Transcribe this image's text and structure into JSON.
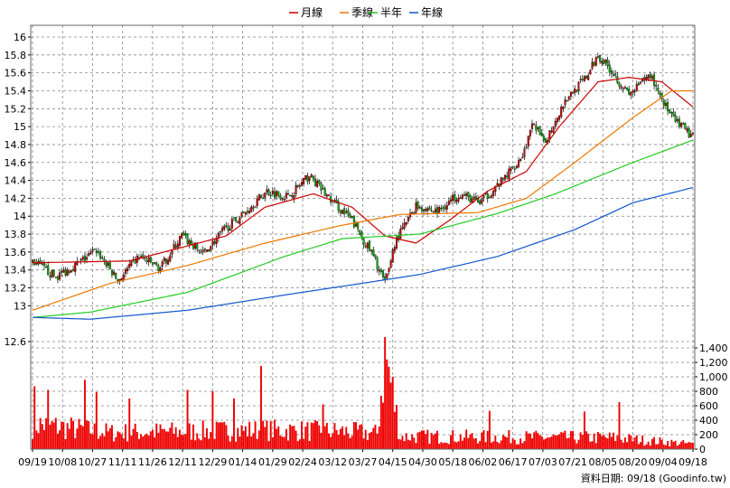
{
  "chart_data": {
    "type": "candlestick-with-volume",
    "legend": [
      {
        "label": "月線",
        "color": "#cc0000"
      },
      {
        "label": "季線",
        "color": "#ee7700"
      },
      {
        "label": "半年",
        "color": "#22cc22"
      },
      {
        "label": "年線",
        "color": "#1155cc"
      }
    ],
    "price_axis": {
      "ticks": [
        "16",
        "15.8",
        "15.6",
        "15.4",
        "15.2",
        "15",
        "14.8",
        "14.6",
        "14.4",
        "14.2",
        "14",
        "13.8",
        "13.6",
        "13.4",
        "13.2",
        "13",
        "12.6"
      ],
      "ylim": [
        12.6,
        16.1
      ]
    },
    "volume_axis": {
      "ticks": [
        "1,400",
        "1,200",
        "1,000",
        "800",
        "600",
        "400",
        "200",
        "0"
      ],
      "ylim": [
        0,
        1500
      ]
    },
    "x_ticks": [
      "09/19",
      "10/08",
      "10/27",
      "11/11",
      "11/26",
      "12/11",
      "12/29",
      "01/14",
      "01/29",
      "02/24",
      "03/12",
      "03/27",
      "04/15",
      "04/30",
      "05/18",
      "06/02",
      "06/17",
      "07/03",
      "07/21",
      "08/05",
      "08/20",
      "09/04",
      "09/18"
    ],
    "close_keypoints": [
      {
        "i": 0,
        "v": 13.5
      },
      {
        "i": 12,
        "v": 13.32
      },
      {
        "i": 22,
        "v": 13.45
      },
      {
        "i": 33,
        "v": 13.62
      },
      {
        "i": 44,
        "v": 13.28
      },
      {
        "i": 55,
        "v": 13.55
      },
      {
        "i": 66,
        "v": 13.42
      },
      {
        "i": 77,
        "v": 13.78
      },
      {
        "i": 88,
        "v": 13.58
      },
      {
        "i": 99,
        "v": 13.85
      },
      {
        "i": 110,
        "v": 14.05
      },
      {
        "i": 121,
        "v": 14.28
      },
      {
        "i": 132,
        "v": 14.22
      },
      {
        "i": 143,
        "v": 14.45
      },
      {
        "i": 154,
        "v": 14.18
      },
      {
        "i": 165,
        "v": 13.95
      },
      {
        "i": 176,
        "v": 13.55
      },
      {
        "i": 182,
        "v": 13.25
      },
      {
        "i": 187,
        "v": 13.7
      },
      {
        "i": 198,
        "v": 14.12
      },
      {
        "i": 209,
        "v": 14.05
      },
      {
        "i": 220,
        "v": 14.25
      },
      {
        "i": 231,
        "v": 14.15
      },
      {
        "i": 242,
        "v": 14.38
      },
      {
        "i": 253,
        "v": 14.68
      },
      {
        "i": 259,
        "v": 15.05
      },
      {
        "i": 264,
        "v": 14.8
      },
      {
        "i": 275,
        "v": 15.3
      },
      {
        "i": 286,
        "v": 15.55
      },
      {
        "i": 292,
        "v": 15.8
      },
      {
        "i": 297,
        "v": 15.68
      },
      {
        "i": 308,
        "v": 15.35
      },
      {
        "i": 319,
        "v": 15.58
      },
      {
        "i": 330,
        "v": 15.1
      },
      {
        "i": 341,
        "v": 14.88
      }
    ],
    "volume_keypoints": [
      {
        "i": 0,
        "v": 400
      },
      {
        "i": 40,
        "v": 260
      },
      {
        "i": 80,
        "v": 280
      },
      {
        "i": 120,
        "v": 300
      },
      {
        "i": 160,
        "v": 280
      },
      {
        "i": 178,
        "v": 250
      },
      {
        "i": 182,
        "v": 1550
      },
      {
        "i": 190,
        "v": 200
      },
      {
        "i": 240,
        "v": 190
      },
      {
        "i": 300,
        "v": 180
      },
      {
        "i": 341,
        "v": 80
      }
    ],
    "volume_spikes": [
      {
        "i": 1,
        "v": 870
      },
      {
        "i": 8,
        "v": 820
      },
      {
        "i": 27,
        "v": 960
      },
      {
        "i": 33,
        "v": 790
      },
      {
        "i": 50,
        "v": 700
      },
      {
        "i": 80,
        "v": 820
      },
      {
        "i": 93,
        "v": 800
      },
      {
        "i": 104,
        "v": 700
      },
      {
        "i": 118,
        "v": 1150
      },
      {
        "i": 150,
        "v": 620
      },
      {
        "i": 182,
        "v": 1550
      },
      {
        "i": 236,
        "v": 530
      },
      {
        "i": 285,
        "v": 520
      },
      {
        "i": 303,
        "v": 650
      }
    ],
    "ma_month_keypoints": [
      {
        "i": 0,
        "v": 13.48
      },
      {
        "i": 50,
        "v": 13.5
      },
      {
        "i": 100,
        "v": 13.78
      },
      {
        "i": 120,
        "v": 14.1
      },
      {
        "i": 145,
        "v": 14.25
      },
      {
        "i": 165,
        "v": 14.1
      },
      {
        "i": 182,
        "v": 13.78
      },
      {
        "i": 198,
        "v": 13.7
      },
      {
        "i": 215,
        "v": 13.95
      },
      {
        "i": 235,
        "v": 14.28
      },
      {
        "i": 255,
        "v": 14.5
      },
      {
        "i": 272,
        "v": 15.0
      },
      {
        "i": 292,
        "v": 15.5
      },
      {
        "i": 308,
        "v": 15.55
      },
      {
        "i": 325,
        "v": 15.5
      },
      {
        "i": 341,
        "v": 15.22
      }
    ],
    "ma_quarter_keypoints": [
      {
        "i": 0,
        "v": 12.95
      },
      {
        "i": 40,
        "v": 13.25
      },
      {
        "i": 80,
        "v": 13.45
      },
      {
        "i": 120,
        "v": 13.7
      },
      {
        "i": 160,
        "v": 13.9
      },
      {
        "i": 190,
        "v": 14.02
      },
      {
        "i": 230,
        "v": 14.04
      },
      {
        "i": 255,
        "v": 14.2
      },
      {
        "i": 280,
        "v": 14.6
      },
      {
        "i": 310,
        "v": 15.1
      },
      {
        "i": 330,
        "v": 15.4
      },
      {
        "i": 341,
        "v": 15.4
      }
    ],
    "ma_half_keypoints": [
      {
        "i": 0,
        "v": 12.87
      },
      {
        "i": 30,
        "v": 12.93
      },
      {
        "i": 80,
        "v": 13.15
      },
      {
        "i": 130,
        "v": 13.55
      },
      {
        "i": 160,
        "v": 13.75
      },
      {
        "i": 200,
        "v": 13.8
      },
      {
        "i": 240,
        "v": 14.03
      },
      {
        "i": 270,
        "v": 14.25
      },
      {
        "i": 310,
        "v": 14.6
      },
      {
        "i": 341,
        "v": 14.85
      }
    ],
    "ma_year_keypoints": [
      {
        "i": 0,
        "v": 12.87
      },
      {
        "i": 30,
        "v": 12.85
      },
      {
        "i": 80,
        "v": 12.95
      },
      {
        "i": 130,
        "v": 13.12
      },
      {
        "i": 170,
        "v": 13.25
      },
      {
        "i": 200,
        "v": 13.35
      },
      {
        "i": 240,
        "v": 13.55
      },
      {
        "i": 280,
        "v": 13.85
      },
      {
        "i": 310,
        "v": 14.15
      },
      {
        "i": 341,
        "v": 14.32
      }
    ]
  },
  "credit": "資料日期: 09/18 (Goodinfo.tw)",
  "colors": {
    "up": "#cc0000",
    "down": "#00aa00",
    "volume": "#ee0000",
    "grid": "#888888"
  }
}
